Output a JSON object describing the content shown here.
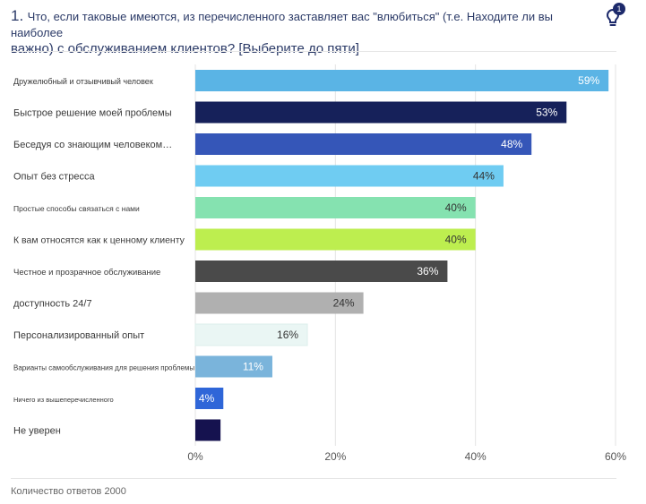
{
  "question": {
    "number": "1.",
    "line1": "Что, если таковые имеются, из перечисленного заставляет вас \"влюбиться\" (т.е. Находите ли вы наиболее",
    "line2": "важно) с обслуживанием клиентов? [Выберите до пяти]"
  },
  "hint": {
    "icon": "lightbulb-icon",
    "badge": "1"
  },
  "footer": {
    "responses": "Количество ответов 2000"
  },
  "chart_data": {
    "type": "bar",
    "orientation": "horizontal",
    "title": "",
    "xlabel": "",
    "ylabel": "",
    "xlim": [
      0,
      60
    ],
    "xticks": [
      "0%",
      "20%",
      "40%",
      "60%"
    ],
    "grid": true,
    "categories": [
      "Дружелюбный и отзывчивый человек",
      "Быстрое решение моей проблемы",
      "Беседуя со знающим человеком…",
      "Опыт без стресса",
      "Простые способы связаться с нами",
      "К вам относятся как к ценному клиенту",
      "Честное и прозрачное обслуживание",
      "доступность 24/7",
      "Персонализированный опыт",
      "Варианты самообслуживания для решения проблемы…",
      "Ничего из вышеперечисленного",
      "Не уверен"
    ],
    "values": [
      59,
      53,
      48,
      44,
      40,
      40,
      36,
      24,
      16,
      11,
      4,
      3.6
    ],
    "value_labels": [
      "59%",
      "53%",
      "48%",
      "44%",
      "40%",
      "40%",
      "36%",
      "24%",
      "16%",
      "11%",
      "4%",
      ""
    ],
    "colors": [
      "#5ab4e5",
      "#16215a",
      "#3556b8",
      "#6fccf2",
      "#85e2b0",
      "#bdee4f",
      "#4a4a4a",
      "#b0b0b0",
      "#eaf6f4",
      "#7ab4db",
      "#2f66d8",
      "#15124f"
    ],
    "label_colors": [
      "#ffffff",
      "#ffffff",
      "#ffffff",
      "#333333",
      "#333333",
      "#333333",
      "#ffffff",
      "#333333",
      "#333333",
      "#ffffff",
      "#ffffff",
      "#ffffff"
    ]
  }
}
